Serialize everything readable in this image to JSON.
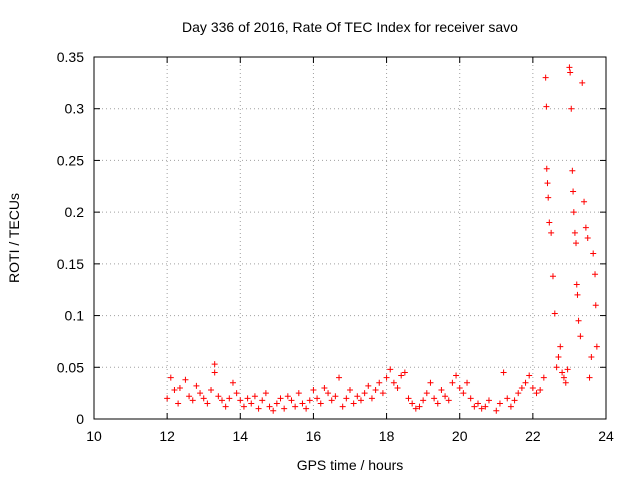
{
  "chart_data": {
    "type": "scatter",
    "title": "Day 336 of 2016, Rate Of TEC Index for receiver savo",
    "xlabel": "GPS time / hours",
    "ylabel": "ROTI / TECUs",
    "xlim": [
      10,
      24
    ],
    "ylim": [
      0,
      0.35
    ],
    "xticks": [
      "10",
      "12",
      "14",
      "16",
      "18",
      "20",
      "22",
      "24"
    ],
    "yticks": [
      "0",
      "0.05",
      "0.1",
      "0.15",
      "0.2",
      "0.25",
      "0.3",
      "0.35"
    ],
    "grid": true,
    "marker": "+",
    "series_color": "#ff0000",
    "x": [
      12.0,
      12.1,
      12.2,
      12.3,
      12.35,
      12.5,
      12.6,
      12.7,
      12.8,
      12.9,
      13.0,
      13.1,
      13.2,
      13.3,
      13.3,
      13.4,
      13.5,
      13.6,
      13.7,
      13.8,
      13.9,
      14.0,
      14.1,
      14.2,
      14.3,
      14.4,
      14.5,
      14.6,
      14.7,
      14.8,
      14.9,
      15.0,
      15.1,
      15.2,
      15.3,
      15.4,
      15.5,
      15.6,
      15.7,
      15.8,
      15.9,
      16.0,
      16.1,
      16.2,
      16.3,
      16.4,
      16.5,
      16.6,
      16.7,
      16.8,
      16.9,
      17.0,
      17.1,
      17.2,
      17.3,
      17.4,
      17.5,
      17.6,
      17.7,
      17.8,
      17.9,
      18.0,
      18.1,
      18.2,
      18.3,
      18.4,
      18.5,
      18.6,
      18.7,
      18.8,
      18.9,
      19.0,
      19.1,
      19.2,
      19.3,
      19.4,
      19.5,
      19.6,
      19.7,
      19.8,
      19.9,
      20.0,
      20.1,
      20.2,
      20.3,
      20.4,
      20.5,
      20.6,
      20.7,
      20.8,
      21.0,
      21.1,
      21.2,
      21.3,
      21.4,
      21.5,
      21.6,
      21.7,
      21.8,
      21.9,
      22.0,
      22.1,
      22.2,
      22.3,
      22.35,
      22.37,
      22.38,
      22.4,
      22.42,
      22.45,
      22.5,
      22.55,
      22.6,
      22.65,
      22.7,
      22.75,
      22.8,
      22.85,
      22.9,
      22.95,
      23.0,
      23.02,
      23.05,
      23.08,
      23.1,
      23.12,
      23.15,
      23.18,
      23.2,
      23.22,
      23.25,
      23.3,
      23.35,
      23.4,
      23.45,
      23.5,
      23.55,
      23.6,
      23.65,
      23.7,
      23.72,
      23.75
    ],
    "y": [
      0.02,
      0.04,
      0.028,
      0.015,
      0.03,
      0.038,
      0.022,
      0.018,
      0.032,
      0.025,
      0.02,
      0.015,
      0.028,
      0.053,
      0.045,
      0.022,
      0.018,
      0.012,
      0.02,
      0.035,
      0.025,
      0.018,
      0.012,
      0.02,
      0.015,
      0.022,
      0.01,
      0.018,
      0.025,
      0.012,
      0.008,
      0.015,
      0.02,
      0.01,
      0.022,
      0.018,
      0.012,
      0.025,
      0.015,
      0.01,
      0.018,
      0.028,
      0.02,
      0.015,
      0.03,
      0.025,
      0.018,
      0.022,
      0.04,
      0.012,
      0.02,
      0.028,
      0.015,
      0.022,
      0.018,
      0.025,
      0.032,
      0.02,
      0.028,
      0.035,
      0.025,
      0.04,
      0.048,
      0.035,
      0.03,
      0.042,
      0.045,
      0.02,
      0.015,
      0.01,
      0.012,
      0.018,
      0.025,
      0.035,
      0.02,
      0.015,
      0.028,
      0.022,
      0.018,
      0.035,
      0.042,
      0.03,
      0.025,
      0.035,
      0.02,
      0.012,
      0.015,
      0.01,
      0.012,
      0.018,
      0.008,
      0.015,
      0.045,
      0.02,
      0.012,
      0.018,
      0.025,
      0.03,
      0.035,
      0.042,
      0.03,
      0.025,
      0.028,
      0.04,
      0.33,
      0.302,
      0.242,
      0.228,
      0.214,
      0.19,
      0.18,
      0.138,
      0.102,
      0.05,
      0.06,
      0.07,
      0.045,
      0.04,
      0.035,
      0.048,
      0.34,
      0.335,
      0.3,
      0.24,
      0.22,
      0.2,
      0.18,
      0.17,
      0.13,
      0.12,
      0.095,
      0.08,
      0.325,
      0.21,
      0.185,
      0.175,
      0.04,
      0.06,
      0.16,
      0.14,
      0.11,
      0.07
    ]
  }
}
